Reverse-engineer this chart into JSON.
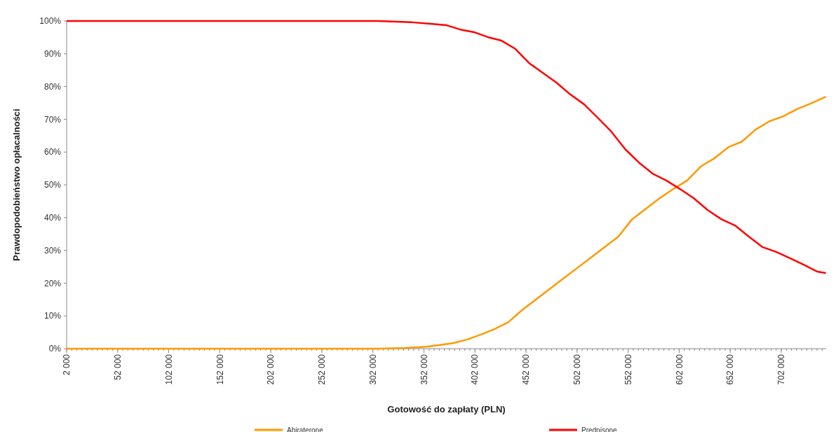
{
  "chart_data": {
    "type": "line",
    "xlabel": "Gotowość do zapłaty (PLN)",
    "ylabel": "Prawdopodobieństwo opłacalności",
    "xlim": [
      2000,
      746000
    ],
    "xticks": [
      {
        "value": 2000,
        "label": "2 000"
      },
      {
        "value": 52000,
        "label": "52 000"
      },
      {
        "value": 102000,
        "label": "102 000"
      },
      {
        "value": 152000,
        "label": "152 000"
      },
      {
        "value": 202000,
        "label": "202 000"
      },
      {
        "value": 252000,
        "label": "252 000"
      },
      {
        "value": 302000,
        "label": "302 000"
      },
      {
        "value": 352000,
        "label": "352 000"
      },
      {
        "value": 402000,
        "label": "402 000"
      },
      {
        "value": 452000,
        "label": "452 000"
      },
      {
        "value": 502000,
        "label": "502 000"
      },
      {
        "value": 552000,
        "label": "552 000"
      },
      {
        "value": 602000,
        "label": "602 000"
      },
      {
        "value": 652000,
        "label": "652 000"
      },
      {
        "value": 702000,
        "label": "702 000"
      }
    ],
    "ylim": [
      0,
      100
    ],
    "yticks": [
      {
        "value": 0,
        "label": "0%"
      },
      {
        "value": 10,
        "label": "10%"
      },
      {
        "value": 20,
        "label": "20%"
      },
      {
        "value": 30,
        "label": "30%"
      },
      {
        "value": 40,
        "label": "40%"
      },
      {
        "value": 50,
        "label": "50%"
      },
      {
        "value": 60,
        "label": "60%"
      },
      {
        "value": 70,
        "label": "70%"
      },
      {
        "value": 80,
        "label": "80%"
      },
      {
        "value": 90,
        "label": "90%"
      },
      {
        "value": 100,
        "label": "100%"
      }
    ],
    "grid": false,
    "legend": "bottom",
    "marker": "none",
    "line_style": "solid",
    "series": [
      {
        "name": "Abiraterone",
        "color": "#ff9900",
        "x": [
          2000,
          306900,
          333800,
          354000,
          367400,
          380900,
          394400,
          407800,
          421300,
          434700,
          448200,
          461700,
          475100,
          488600,
          502000,
          515500,
          528900,
          542400,
          555900,
          569300,
          582800,
          596200,
          609700,
          623100,
          636600,
          650100,
          663500,
          677000,
          690400,
          703900,
          717400,
          730800,
          745700
        ],
        "values": [
          0,
          0,
          0.2,
          0.6,
          1.1,
          1.7,
          2.8,
          4.3,
          6.0,
          8.1,
          11.8,
          15.0,
          18.2,
          21.4,
          24.6,
          27.8,
          31.0,
          34.2,
          39.5,
          42.7,
          45.9,
          48.7,
          51.3,
          55.6,
          58.1,
          61.5,
          63.2,
          66.9,
          69.4,
          70.9,
          73.1,
          74.8,
          76.9
        ]
      },
      {
        "name": "Prednisone",
        "color": "#ff0000",
        "x": [
          2000,
          306900,
          340500,
          360700,
          374200,
          387600,
          401100,
          414500,
          428000,
          441500,
          454900,
          468400,
          481800,
          495300,
          508800,
          522200,
          535700,
          549100,
          562600,
          576100,
          589500,
          603000,
          616400,
          629900,
          643400,
          656800,
          670300,
          683700,
          697200,
          710700,
          724100,
          737600,
          745700
        ],
        "values": [
          100,
          100,
          99.6,
          99.1,
          98.7,
          97.4,
          96.6,
          95.1,
          94.0,
          91.5,
          87.2,
          84.2,
          81.2,
          77.6,
          74.6,
          70.5,
          66.2,
          60.9,
          56.8,
          53.4,
          51.3,
          48.7,
          45.9,
          42.3,
          39.5,
          37.6,
          34.2,
          31.0,
          29.5,
          27.6,
          25.6,
          23.5,
          23.1
        ]
      }
    ]
  }
}
